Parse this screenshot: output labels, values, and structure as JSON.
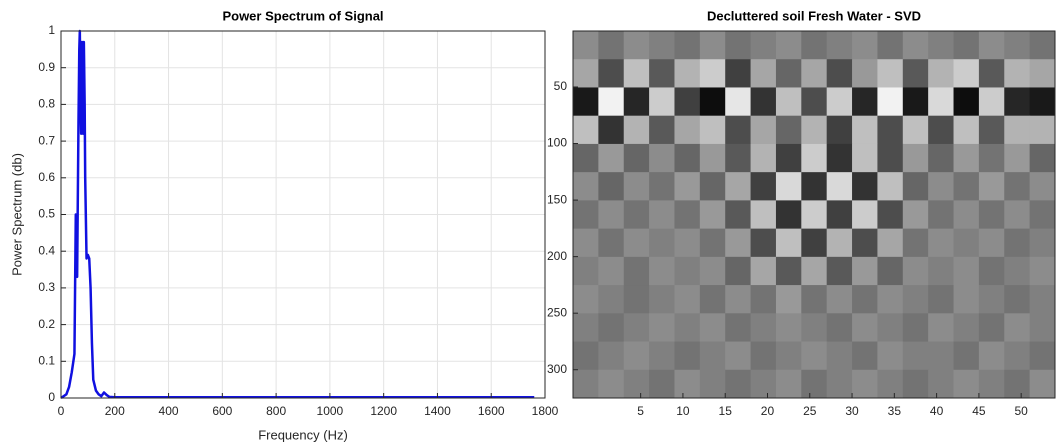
{
  "chart_data": [
    {
      "type": "line",
      "title": "Power Spectrum of Signal",
      "xlabel": "Frequency (Hz)",
      "ylabel": "Power Spectrum (db)",
      "x": [
        0,
        20,
        30,
        40,
        50,
        55,
        60,
        62,
        65,
        68,
        70,
        72,
        75,
        78,
        80,
        82,
        85,
        88,
        90,
        95,
        100,
        105,
        110,
        115,
        120,
        130,
        140,
        150,
        160,
        170,
        180,
        200,
        400,
        800,
        1200,
        1600,
        1760
      ],
      "values": [
        0,
        0.01,
        0.03,
        0.07,
        0.12,
        0.5,
        0.33,
        0.5,
        0.75,
        0.95,
        1,
        0.85,
        0.72,
        0.97,
        0.9,
        0.72,
        0.97,
        0.8,
        0.6,
        0.38,
        0.39,
        0.38,
        0.3,
        0.15,
        0.05,
        0.02,
        0.01,
        0.005,
        0.015,
        0.008,
        0.003,
        0.002,
        0.002,
        0.002,
        0.002,
        0.002,
        0.002
      ],
      "color": "#1010e0",
      "xlim": [
        0,
        1800
      ],
      "xticks": [
        0,
        200,
        400,
        600,
        800,
        1000,
        1200,
        1400,
        1600,
        1800
      ],
      "ylim": [
        0,
        1
      ],
      "yticks": [
        0,
        0.1,
        0.2,
        0.3,
        0.4,
        0.5,
        0.6,
        0.7,
        0.8,
        0.9,
        1
      ],
      "grid": true
    },
    {
      "type": "heatmap",
      "title": "Decluttered soil Fresh Water - SVD",
      "xlim": [
        -3,
        54
      ],
      "xticks": [
        5,
        10,
        15,
        20,
        25,
        30,
        35,
        40,
        45,
        50
      ],
      "ylim": [
        0.5,
        325
      ],
      "yticks": [
        50,
        100,
        150,
        200,
        250,
        300
      ],
      "y_reversed": true,
      "colormap": "gray",
      "clim": [
        -1,
        1
      ],
      "grid": false,
      "z": [
        [
          0.1,
          -0.1,
          0.1,
          0,
          -0.1,
          0.1,
          -0.1,
          0,
          0.1,
          -0.1,
          0,
          0.1,
          -0.1,
          0.1,
          0,
          -0.1,
          0.1,
          0,
          -0.1
        ],
        [
          0.3,
          -0.4,
          0.5,
          -0.3,
          0.4,
          0.6,
          -0.5,
          0.3,
          -0.2,
          0.3,
          -0.4,
          0.2,
          0.5,
          -0.3,
          0.4,
          0.6,
          -0.3,
          0.4,
          0.3
        ],
        [
          -0.8,
          0.9,
          -0.7,
          0.6,
          -0.5,
          -0.9,
          0.8,
          -0.6,
          0.5,
          -0.4,
          0.6,
          -0.7,
          0.9,
          -0.8,
          0.7,
          -0.9,
          0.6,
          -0.7,
          -0.8
        ],
        [
          0.5,
          -0.6,
          0.4,
          -0.3,
          0.3,
          0.5,
          -0.4,
          0.3,
          -0.2,
          0.4,
          -0.5,
          0.5,
          -0.4,
          0.5,
          -0.4,
          0.5,
          -0.3,
          0.4,
          0.4
        ],
        [
          -0.2,
          0.2,
          -0.2,
          0.1,
          -0.2,
          0.2,
          -0.3,
          0.4,
          -0.5,
          0.6,
          -0.6,
          0.5,
          -0.4,
          0.2,
          -0.2,
          0.2,
          -0.1,
          0.2,
          -0.2
        ],
        [
          0.1,
          -0.2,
          0.1,
          -0.1,
          0.2,
          -0.2,
          0.3,
          -0.5,
          0.7,
          -0.6,
          0.7,
          -0.6,
          0.5,
          -0.2,
          0.1,
          -0.1,
          0.2,
          -0.1,
          0.1
        ],
        [
          -0.1,
          0.1,
          -0.1,
          0.1,
          -0.1,
          0.2,
          -0.3,
          0.5,
          -0.6,
          0.6,
          -0.5,
          0.6,
          -0.4,
          0.2,
          -0.1,
          0.1,
          -0.1,
          0.1,
          -0.1
        ],
        [
          0.1,
          -0.1,
          0.1,
          0,
          0.1,
          -0.1,
          0.2,
          -0.4,
          0.5,
          -0.5,
          0.4,
          -0.4,
          0.3,
          -0.1,
          0.1,
          0,
          0.1,
          -0.1,
          0
        ],
        [
          0,
          0.1,
          -0.1,
          0.1,
          0,
          0.1,
          -0.2,
          0.3,
          -0.3,
          0.3,
          -0.3,
          0.2,
          -0.2,
          0.1,
          0,
          0.1,
          -0.1,
          0,
          0.1
        ],
        [
          0.1,
          0,
          -0.1,
          0,
          0.1,
          -0.1,
          0.1,
          -0.1,
          0.2,
          -0.1,
          0.1,
          -0.1,
          0.1,
          0,
          -0.1,
          0.1,
          0,
          -0.1,
          0
        ],
        [
          0,
          -0.1,
          0,
          0.1,
          0,
          0.1,
          -0.1,
          0,
          0.1,
          0,
          -0.1,
          0.1,
          0,
          -0.1,
          0.1,
          0,
          -0.1,
          0.1,
          0
        ],
        [
          -0.1,
          0,
          0.1,
          0,
          -0.1,
          0,
          0.1,
          -0.1,
          0,
          0.1,
          0,
          -0.1,
          0.1,
          0,
          0,
          -0.1,
          0.1,
          0,
          -0.1
        ],
        [
          0,
          0.1,
          0,
          -0.1,
          0.1,
          0,
          -0.1,
          0,
          0.1,
          -0.1,
          0,
          0.1,
          0,
          -0.1,
          0,
          0.1,
          0,
          -0.1,
          0.1
        ]
      ]
    }
  ]
}
